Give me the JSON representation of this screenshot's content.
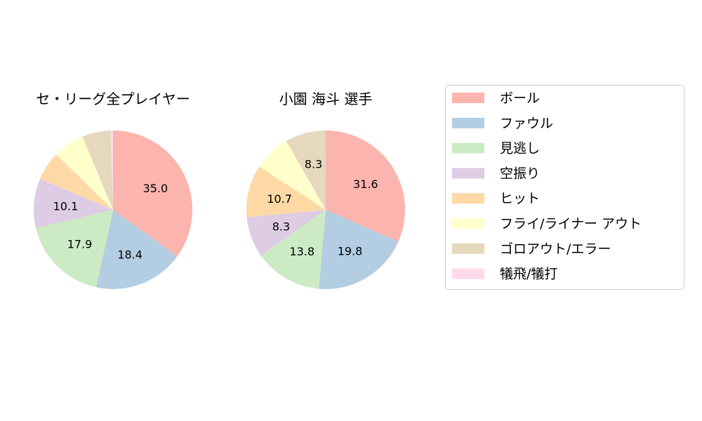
{
  "chart_data": [
    {
      "type": "pie",
      "title": "セ・リーグ全プレイヤー",
      "categories": [
        "ボール",
        "ファウル",
        "見逃し",
        "空振り",
        "ヒット",
        "フライ/ライナー アウト",
        "ゴロアウト/エラー",
        "犠飛/犠打"
      ],
      "values": [
        35.0,
        18.4,
        17.9,
        10.1,
        5.9,
        6.4,
        5.8,
        0.5
      ],
      "data_labels": [
        "35.0",
        "18.4",
        "17.9",
        "10.1",
        "",
        "",
        "",
        ""
      ]
    },
    {
      "type": "pie",
      "title": "小園 海斗  選手",
      "categories": [
        "ボール",
        "ファウル",
        "見逃し",
        "空振り",
        "ヒット",
        "フライ/ライナー アウト",
        "ゴロアウト/エラー",
        "犠飛/犠打"
      ],
      "values": [
        31.6,
        19.8,
        13.8,
        8.3,
        10.7,
        7.5,
        8.3,
        0.0
      ],
      "data_labels": [
        "31.6",
        "19.8",
        "13.8",
        "8.3",
        "10.7",
        "",
        "8.3",
        ""
      ]
    }
  ],
  "legend": {
    "placement": "right",
    "entries": [
      "ボール",
      "ファウル",
      "見逃し",
      "空振り",
      "ヒット",
      "フライ/ライナー アウト",
      "ゴロアウト/エラー",
      "犠飛/犠打"
    ]
  },
  "colors": [
    "#fbb4ae",
    "#b3cde3",
    "#ccebc5",
    "#decbe4",
    "#fed9a6",
    "#ffffcc",
    "#e5d8bd",
    "#fddaec"
  ]
}
